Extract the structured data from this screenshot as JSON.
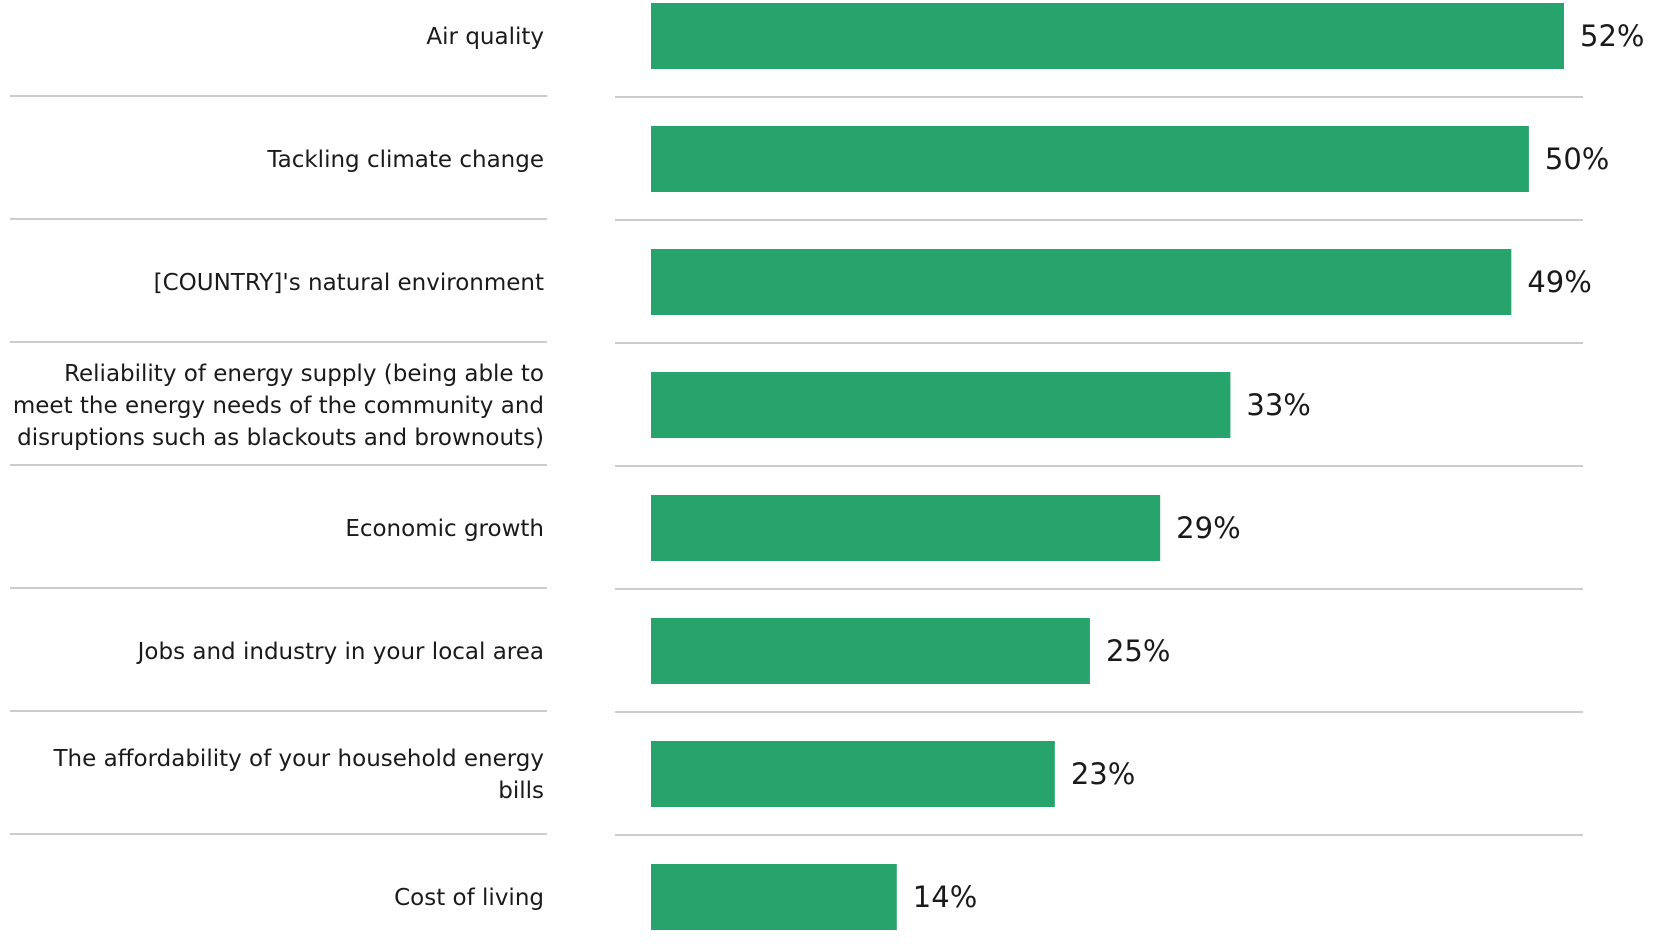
{
  "chart_data": {
    "type": "bar",
    "orientation": "horizontal",
    "categories": [
      "Air quality",
      "Tackling climate change",
      "[COUNTRY]'s natural environment",
      "Reliability of energy supply (being able to meet the energy needs of the community and disruptions such as blackouts and brownouts)",
      "Economic growth",
      "Jobs and industry in your local area",
      "The affordability of your household energy bills",
      "Cost of living"
    ],
    "category_lines": [
      [
        "Air quality"
      ],
      [
        "Tackling climate change"
      ],
      [
        "[COUNTRY]'s natural environment"
      ],
      [
        "Reliability of energy supply (being able to",
        "meet the energy needs of the community and",
        "disruptions such as blackouts and brownouts)"
      ],
      [
        "Economic growth"
      ],
      [
        "Jobs and industry in your local area"
      ],
      [
        "The affordability of your household energy",
        "bills"
      ],
      [
        "Cost of living"
      ]
    ],
    "values": [
      52,
      50,
      49,
      33,
      29,
      25,
      23,
      14
    ],
    "value_labels": [
      "52%",
      "50%",
      "49%",
      "33%",
      "29%",
      "25%",
      "23%",
      "14%"
    ],
    "xlim": [
      0,
      52
    ],
    "grid": false,
    "legend": "none",
    "colors": {
      "bar": "#27a46b",
      "divider": "#cccccc",
      "text": "#1a1a1a"
    }
  }
}
